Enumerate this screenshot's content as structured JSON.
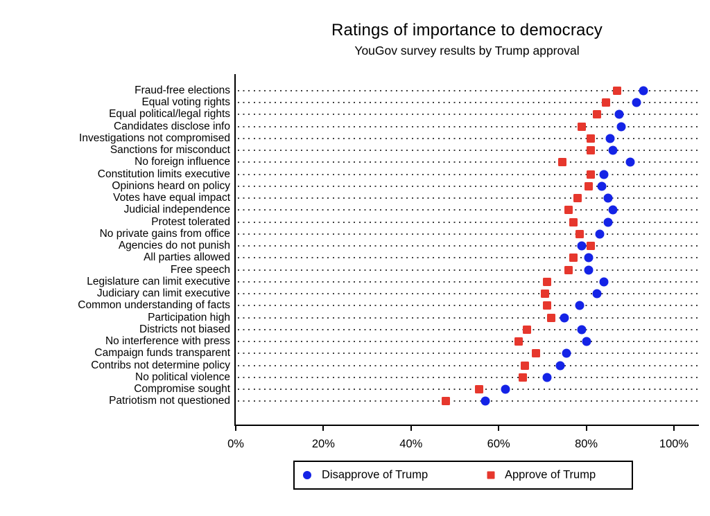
{
  "title": "Ratings of importance to democracy",
  "subtitle": "YouGov survey results by Trump approval",
  "colors": {
    "disapprove_blue": "#1423e6",
    "approve_red": "#e6372d",
    "axis": "#000000",
    "dotted_gridline": "#3d3d3d",
    "background": "#ffffff"
  },
  "legend": {
    "items": [
      {
        "label": "Disapprove of Trump",
        "marker": "circle",
        "color": "#1423e6"
      },
      {
        "label": "Approve of Trump",
        "marker": "square",
        "color": "#e6372d"
      }
    ]
  },
  "chart_data": {
    "type": "scatter",
    "orientation": "horizontal-dot-plot",
    "title": "Ratings of importance to democracy",
    "subtitle": "YouGov survey results by Trump approval",
    "xlabel": "",
    "ylabel": "",
    "x_unit": "percent",
    "xlim": [
      0,
      106
    ],
    "x_ticks": [
      {
        "value": 0,
        "label": "0%"
      },
      {
        "value": 20,
        "label": "20%"
      },
      {
        "value": 40,
        "label": "40%"
      },
      {
        "value": 60,
        "label": "60%"
      },
      {
        "value": 80,
        "label": "80%"
      },
      {
        "value": 100,
        "label": "100%"
      }
    ],
    "grid": "dotted-horizontal-row-guides",
    "legend_position": "bottom",
    "categories": [
      "Fraud-free elections",
      "Equal voting rights",
      "Equal political/legal rights",
      "Candidates disclose info",
      "Investigations not compromised",
      "Sanctions for misconduct",
      "No foreign influence",
      "Constitution limits executive",
      "Opinions heard on policy",
      "Votes have equal impact",
      "Judicial independence",
      "Protest tolerated",
      "No private gains from office",
      "Agencies do not punish",
      "All parties allowed",
      "Free speech",
      "Legislature can limit executive",
      "Judiciary can limit executive",
      "Common understanding of facts",
      "Participation high",
      "Districts not biased",
      "No interference with press",
      "Campaign funds transparent",
      "Contribs not determine policy",
      "No political violence",
      "Compromise sought",
      "Patriotism not questioned"
    ],
    "series": [
      {
        "name": "Disapprove of Trump",
        "marker": "circle",
        "color": "#1423e6",
        "values": [
          93,
          91.5,
          87.5,
          88,
          85.5,
          86,
          90,
          84,
          83.5,
          85,
          86,
          85,
          83,
          79,
          80.5,
          80.5,
          84,
          82.5,
          78.5,
          75,
          79,
          80,
          75.5,
          74,
          71,
          61.5,
          57
        ]
      },
      {
        "name": "Approve of Trump",
        "marker": "square",
        "color": "#e6372d",
        "values": [
          87,
          84.5,
          82.5,
          79,
          81,
          81,
          74.5,
          81,
          80.5,
          78,
          76,
          77,
          78.5,
          81,
          77,
          76,
          71,
          70.5,
          71,
          72,
          66.5,
          64.5,
          68.5,
          66,
          65.5,
          55.5,
          48
        ]
      }
    ]
  }
}
